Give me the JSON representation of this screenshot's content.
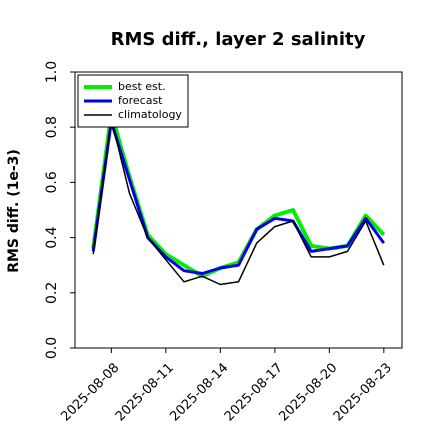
{
  "chart_data": {
    "type": "line",
    "title": "RMS diff., layer 2 salinity",
    "xlabel": "",
    "ylabel": "RMS diff. (1e-3)",
    "ylim": [
      0.0,
      1.0
    ],
    "yticks": [
      "0.0",
      "0.2",
      "0.4",
      "0.6",
      "0.8",
      "1.0"
    ],
    "ytick_values": [
      0.0,
      0.2,
      0.4,
      0.6,
      0.8,
      1.0
    ],
    "xticks": [
      "2025-08-08",
      "2025-08-11",
      "2025-08-14",
      "2025-08-17",
      "2025-08-20",
      "2025-08-23"
    ],
    "xtick_days": [
      8,
      11,
      14,
      17,
      20,
      23
    ],
    "highlight_xtick": "2025-08-14",
    "highlight_color": "#228B22",
    "xlim": [
      "2025-08-06",
      "2025-08-24"
    ],
    "xlim_days": [
      6,
      24
    ],
    "legend_position": "upper-left",
    "x_days": [
      7,
      8,
      9,
      10,
      11,
      12,
      13,
      14,
      15,
      16,
      17,
      18,
      19,
      20,
      21,
      22,
      23
    ],
    "series": [
      {
        "name": "best est.",
        "color": "#00ee00",
        "values": [
          0.36,
          0.85,
          0.62,
          0.41,
          0.34,
          0.3,
          0.26,
          0.29,
          0.31,
          0.43,
          0.48,
          0.5,
          0.37,
          0.36,
          0.37,
          0.48,
          0.41
        ]
      },
      {
        "name": "forecast",
        "color": "#0000ee",
        "values": [
          0.35,
          0.82,
          0.61,
          0.4,
          0.33,
          0.28,
          0.27,
          0.29,
          0.3,
          0.43,
          0.47,
          0.46,
          0.35,
          0.36,
          0.37,
          0.47,
          0.38
        ]
      },
      {
        "name": "climatology",
        "color": "#000000",
        "values": [
          0.34,
          0.83,
          0.56,
          0.4,
          0.32,
          0.24,
          0.26,
          0.23,
          0.24,
          0.38,
          0.44,
          0.46,
          0.33,
          0.33,
          0.35,
          0.46,
          0.3
        ]
      }
    ]
  }
}
